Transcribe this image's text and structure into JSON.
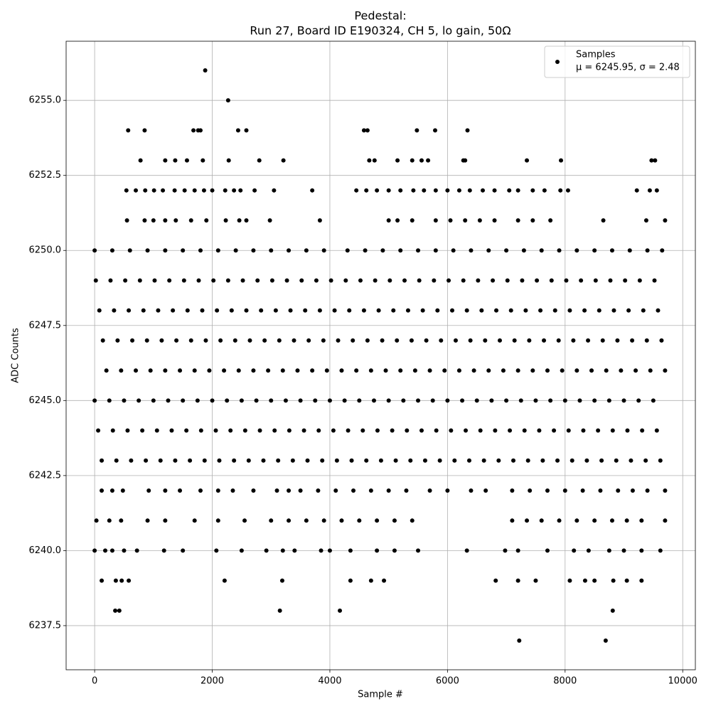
{
  "chart_data": {
    "type": "scatter",
    "title": "Pedestal:",
    "subtitle": "Run 27, Board ID E190324, CH 5, lo gain, 50Ω",
    "x_label": "Sample #",
    "y_label": "ADC Counts",
    "annotation": "μ = 6245.95, σ = 2.48",
    "grid": true,
    "legend": "upper right",
    "xlim": [
      -485,
      10215
    ],
    "ylim": [
      6236.03,
      6256.97
    ],
    "xticks": [
      0,
      2000,
      4000,
      6000,
      8000,
      10000
    ],
    "yticks": [
      6237.5,
      {
        "value": 6240,
        "label": "6240.0"
      },
      6242.5,
      {
        "value": 6245,
        "label": "6245.0"
      },
      6247.5,
      {
        "value": 6250,
        "label": "6250.0"
      },
      6252.5,
      {
        "value": 6255,
        "label": "6255.0"
      }
    ],
    "series": [
      {
        "name": "Samples",
        "color": "#000000",
        "x": [
          1880,
          2270,
          570,
          850,
          1680,
          1760,
          1800,
          2440,
          2580,
          4580,
          4640,
          5480,
          5790,
          6340,
          780,
          1200,
          1370,
          1570,
          1840,
          2280,
          2800,
          3210,
          4670,
          4760,
          5150,
          5400,
          5560,
          5670,
          6270,
          6300,
          7350,
          7930,
          9470,
          9530,
          540,
          700,
          860,
          1010,
          1160,
          1360,
          1530,
          1700,
          1860,
          2000,
          2220,
          2370,
          2480,
          2720,
          3050,
          3700,
          4450,
          4620,
          4800,
          5000,
          5200,
          5420,
          5600,
          5800,
          6000,
          6200,
          6380,
          6600,
          6800,
          7050,
          7200,
          7450,
          7650,
          7920,
          8050,
          9220,
          9440,
          9560,
          550,
          850,
          1000,
          1200,
          1380,
          1640,
          1900,
          2230,
          2460,
          2580,
          2980,
          3830,
          5000,
          5150,
          5400,
          5800,
          6050,
          6300,
          6550,
          6800,
          7200,
          7450,
          7750,
          8650,
          9380,
          9700,
          0,
          300,
          600,
          900,
          1200,
          1500,
          1800,
          2100,
          2400,
          2700,
          3000,
          3300,
          3600,
          3900,
          4300,
          4600,
          4900,
          5200,
          5500,
          5800,
          6100,
          6400,
          6700,
          7000,
          7300,
          7600,
          7900,
          8200,
          8500,
          8800,
          9100,
          9400,
          9650,
          20,
          270,
          520,
          770,
          1020,
          1270,
          1520,
          1770,
          2020,
          2270,
          2520,
          2770,
          3020,
          3270,
          3520,
          3770,
          4020,
          4270,
          4520,
          4770,
          5020,
          5270,
          5520,
          5770,
          6020,
          6270,
          6520,
          6770,
          7020,
          7270,
          7520,
          7770,
          8020,
          8270,
          8520,
          8770,
          9020,
          9270,
          9520,
          80,
          330,
          580,
          830,
          1080,
          1330,
          1580,
          1830,
          2080,
          2330,
          2580,
          2830,
          3080,
          3330,
          3580,
          3830,
          4080,
          4330,
          4580,
          4830,
          5080,
          5330,
          5580,
          5830,
          6080,
          6330,
          6580,
          6830,
          7080,
          7330,
          7580,
          7830,
          8080,
          8330,
          8580,
          8830,
          9080,
          9330,
          9580,
          140,
          390,
          640,
          890,
          1140,
          1390,
          1640,
          1890,
          2140,
          2390,
          2640,
          2890,
          3140,
          3390,
          3640,
          3890,
          4140,
          4390,
          4640,
          4890,
          5140,
          5390,
          5640,
          5890,
          6140,
          6390,
          6640,
          6890,
          7140,
          7390,
          7640,
          7890,
          8140,
          8390,
          8640,
          8890,
          9140,
          9390,
          9640,
          200,
          450,
          700,
          950,
          1200,
          1450,
          1700,
          1950,
          2200,
          2450,
          2700,
          2950,
          3200,
          3450,
          3700,
          3950,
          4200,
          4450,
          4700,
          4950,
          5200,
          5450,
          5700,
          5950,
          6200,
          6450,
          6700,
          6950,
          7200,
          7450,
          7700,
          7950,
          8200,
          8450,
          8700,
          8950,
          9200,
          9450,
          9700,
          0,
          250,
          500,
          750,
          1000,
          1250,
          1500,
          1750,
          2000,
          2250,
          2500,
          2750,
          3000,
          3250,
          3500,
          3750,
          4000,
          4250,
          4500,
          4750,
          5000,
          5250,
          5500,
          5750,
          6000,
          6250,
          6500,
          6750,
          7000,
          7250,
          7500,
          7750,
          8000,
          8250,
          8500,
          8750,
          9000,
          9250,
          9500,
          60,
          310,
          560,
          810,
          1060,
          1310,
          1560,
          1810,
          2060,
          2310,
          2560,
          2810,
          3060,
          3310,
          3560,
          3810,
          4060,
          4310,
          4560,
          4810,
          5060,
          5310,
          5560,
          5810,
          6060,
          6310,
          6560,
          6810,
          7060,
          7310,
          7560,
          7810,
          8060,
          8310,
          8560,
          8810,
          9060,
          9310,
          9560,
          120,
          370,
          620,
          870,
          1120,
          1370,
          1620,
          1870,
          2120,
          2370,
          2620,
          2870,
          3120,
          3370,
          3620,
          3870,
          4120,
          4370,
          4620,
          4870,
          5120,
          5370,
          5620,
          5870,
          6120,
          6370,
          6620,
          6870,
          7120,
          7370,
          7620,
          7870,
          8120,
          8370,
          8620,
          8870,
          9120,
          9370,
          9620,
          120,
          300,
          480,
          920,
          1200,
          1450,
          1800,
          2100,
          2350,
          2700,
          3100,
          3300,
          3500,
          3800,
          4100,
          4400,
          4700,
          5000,
          5300,
          5700,
          6000,
          6400,
          6650,
          7100,
          7400,
          7700,
          8000,
          8300,
          8600,
          8900,
          9150,
          9400,
          9700,
          30,
          250,
          450,
          900,
          1200,
          1700,
          2100,
          2550,
          3000,
          3300,
          3600,
          3900,
          4200,
          4500,
          4800,
          5100,
          5400,
          7100,
          7350,
          7600,
          7900,
          8200,
          8500,
          8800,
          9050,
          9300,
          9700,
          0,
          180,
          300,
          500,
          720,
          1180,
          1500,
          2070,
          2500,
          2920,
          3200,
          3400,
          3850,
          4000,
          4350,
          4800,
          5100,
          5500,
          6330,
          6980,
          7200,
          7700,
          8150,
          8400,
          8750,
          9000,
          9300,
          9620,
          120,
          360,
          460,
          580,
          2210,
          3190,
          4350,
          4700,
          4920,
          6820,
          7200,
          7500,
          8080,
          8340,
          8500,
          8820,
          9050,
          9300,
          350,
          420,
          3150,
          4170,
          8810,
          7220,
          8690
        ],
        "values": [
          6256,
          6255,
          6254,
          6254,
          6254,
          6254,
          6254,
          6254,
          6254,
          6254,
          6254,
          6254,
          6254,
          6254,
          6253,
          6253,
          6253,
          6253,
          6253,
          6253,
          6253,
          6253,
          6253,
          6253,
          6253,
          6253,
          6253,
          6253,
          6253,
          6253,
          6253,
          6253,
          6253,
          6253,
          6252,
          6252,
          6252,
          6252,
          6252,
          6252,
          6252,
          6252,
          6252,
          6252,
          6252,
          6252,
          6252,
          6252,
          6252,
          6252,
          6252,
          6252,
          6252,
          6252,
          6252,
          6252,
          6252,
          6252,
          6252,
          6252,
          6252,
          6252,
          6252,
          6252,
          6252,
          6252,
          6252,
          6252,
          6252,
          6252,
          6252,
          6252,
          6251,
          6251,
          6251,
          6251,
          6251,
          6251,
          6251,
          6251,
          6251,
          6251,
          6251,
          6251,
          6251,
          6251,
          6251,
          6251,
          6251,
          6251,
          6251,
          6251,
          6251,
          6251,
          6251,
          6251,
          6251,
          6251,
          6250,
          6250,
          6250,
          6250,
          6250,
          6250,
          6250,
          6250,
          6250,
          6250,
          6250,
          6250,
          6250,
          6250,
          6250,
          6250,
          6250,
          6250,
          6250,
          6250,
          6250,
          6250,
          6250,
          6250,
          6250,
          6250,
          6250,
          6250,
          6250,
          6250,
          6250,
          6250,
          6250,
          6249,
          6249,
          6249,
          6249,
          6249,
          6249,
          6249,
          6249,
          6249,
          6249,
          6249,
          6249,
          6249,
          6249,
          6249,
          6249,
          6249,
          6249,
          6249,
          6249,
          6249,
          6249,
          6249,
          6249,
          6249,
          6249,
          6249,
          6249,
          6249,
          6249,
          6249,
          6249,
          6249,
          6249,
          6249,
          6249,
          6249,
          6249,
          6249,
          6248,
          6248,
          6248,
          6248,
          6248,
          6248,
          6248,
          6248,
          6248,
          6248,
          6248,
          6248,
          6248,
          6248,
          6248,
          6248,
          6248,
          6248,
          6248,
          6248,
          6248,
          6248,
          6248,
          6248,
          6248,
          6248,
          6248,
          6248,
          6248,
          6248,
          6248,
          6248,
          6248,
          6248,
          6248,
          6248,
          6248,
          6248,
          6248,
          6247,
          6247,
          6247,
          6247,
          6247,
          6247,
          6247,
          6247,
          6247,
          6247,
          6247,
          6247,
          6247,
          6247,
          6247,
          6247,
          6247,
          6247,
          6247,
          6247,
          6247,
          6247,
          6247,
          6247,
          6247,
          6247,
          6247,
          6247,
          6247,
          6247,
          6247,
          6247,
          6247,
          6247,
          6247,
          6247,
          6247,
          6247,
          6247,
          6246,
          6246,
          6246,
          6246,
          6246,
          6246,
          6246,
          6246,
          6246,
          6246,
          6246,
          6246,
          6246,
          6246,
          6246,
          6246,
          6246,
          6246,
          6246,
          6246,
          6246,
          6246,
          6246,
          6246,
          6246,
          6246,
          6246,
          6246,
          6246,
          6246,
          6246,
          6246,
          6246,
          6246,
          6246,
          6246,
          6246,
          6246,
          6246,
          6245,
          6245,
          6245,
          6245,
          6245,
          6245,
          6245,
          6245,
          6245,
          6245,
          6245,
          6245,
          6245,
          6245,
          6245,
          6245,
          6245,
          6245,
          6245,
          6245,
          6245,
          6245,
          6245,
          6245,
          6245,
          6245,
          6245,
          6245,
          6245,
          6245,
          6245,
          6245,
          6245,
          6245,
          6245,
          6245,
          6245,
          6245,
          6245,
          6244,
          6244,
          6244,
          6244,
          6244,
          6244,
          6244,
          6244,
          6244,
          6244,
          6244,
          6244,
          6244,
          6244,
          6244,
          6244,
          6244,
          6244,
          6244,
          6244,
          6244,
          6244,
          6244,
          6244,
          6244,
          6244,
          6244,
          6244,
          6244,
          6244,
          6244,
          6244,
          6244,
          6244,
          6244,
          6244,
          6244,
          6244,
          6244,
          6243,
          6243,
          6243,
          6243,
          6243,
          6243,
          6243,
          6243,
          6243,
          6243,
          6243,
          6243,
          6243,
          6243,
          6243,
          6243,
          6243,
          6243,
          6243,
          6243,
          6243,
          6243,
          6243,
          6243,
          6243,
          6243,
          6243,
          6243,
          6243,
          6243,
          6243,
          6243,
          6243,
          6243,
          6243,
          6243,
          6243,
          6243,
          6243,
          6242,
          6242,
          6242,
          6242,
          6242,
          6242,
          6242,
          6242,
          6242,
          6242,
          6242,
          6242,
          6242,
          6242,
          6242,
          6242,
          6242,
          6242,
          6242,
          6242,
          6242,
          6242,
          6242,
          6242,
          6242,
          6242,
          6242,
          6242,
          6242,
          6242,
          6242,
          6242,
          6242,
          6241,
          6241,
          6241,
          6241,
          6241,
          6241,
          6241,
          6241,
          6241,
          6241,
          6241,
          6241,
          6241,
          6241,
          6241,
          6241,
          6241,
          6241,
          6241,
          6241,
          6241,
          6241,
          6241,
          6241,
          6241,
          6241,
          6241,
          6240,
          6240,
          6240,
          6240,
          6240,
          6240,
          6240,
          6240,
          6240,
          6240,
          6240,
          6240,
          6240,
          6240,
          6240,
          6240,
          6240,
          6240,
          6240,
          6240,
          6240,
          6240,
          6240,
          6240,
          6240,
          6240,
          6240,
          6240,
          6239,
          6239,
          6239,
          6239,
          6239,
          6239,
          6239,
          6239,
          6239,
          6239,
          6239,
          6239,
          6239,
          6239,
          6239,
          6239,
          6239,
          6239,
          6238,
          6238,
          6238,
          6238,
          6238,
          6237,
          6237
        ]
      }
    ]
  }
}
